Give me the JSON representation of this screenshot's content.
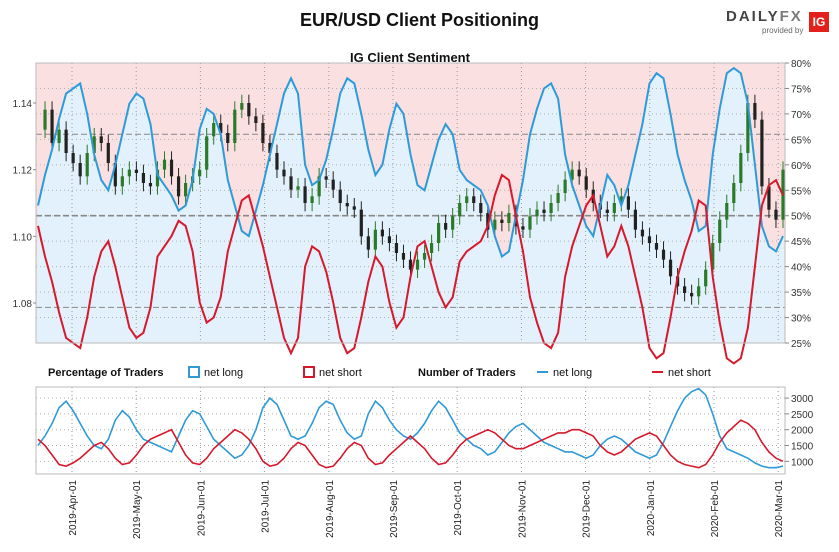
{
  "header": {
    "title": "EUR/USD Client Positioning",
    "logo_brand_a": "DAILY",
    "logo_brand_b": "FX",
    "logo_sub": "provided by",
    "logo_ig": "IG"
  },
  "colors": {
    "long_fill": "#e2f1fb",
    "short_fill": "#fbe0e2",
    "net_long": "#2f9ad8",
    "net_short": "#d7192d",
    "candle_up": "#2a7a2a",
    "candle_down": "#222222"
  },
  "chart_data": [
    {
      "type": "line",
      "title": "IG Client Sentiment",
      "y_left_ticks": [
        "1.14",
        "1.12",
        "1.10",
        "1.08"
      ],
      "y_left_range": [
        1.068,
        1.152
      ],
      "y_right_ticks": [
        "80%",
        "75%",
        "70%",
        "65%",
        "60%",
        "55%",
        "50%",
        "45%",
        "40%",
        "35%",
        "30%",
        "25%"
      ],
      "y_right_range": [
        25,
        80
      ],
      "reference_lines": [
        {
          "pct": 50
        },
        {
          "pct": 66
        },
        {
          "pct": 32
        }
      ],
      "series": [
        {
          "role": "net-long-percent",
          "color": "net_long",
          "values": [
            52,
            58,
            63,
            69,
            74,
            75,
            76,
            70,
            62,
            57,
            55,
            60,
            66,
            72,
            74,
            73,
            68,
            58,
            56,
            54,
            51,
            52,
            57,
            67,
            71,
            70,
            66,
            57,
            52,
            47,
            46,
            51,
            56,
            62,
            68,
            74,
            77,
            74,
            60,
            56,
            57,
            61,
            67,
            74,
            77,
            76,
            70,
            63,
            58,
            60,
            67,
            72,
            70,
            62,
            56,
            55,
            60,
            65,
            68,
            66,
            59,
            57,
            56,
            55,
            52,
            46,
            42,
            43,
            50,
            57,
            66,
            71,
            75,
            76,
            73,
            62,
            56,
            52,
            48,
            46,
            52,
            58,
            56,
            52,
            56,
            62,
            68,
            76,
            78,
            77,
            70,
            62,
            57,
            53,
            47,
            48,
            62,
            71,
            78,
            79,
            78,
            72,
            60,
            48,
            44,
            43,
            46
          ]
        },
        {
          "role": "net-short-percent",
          "color": "net_short",
          "values": [
            48,
            42,
            37,
            31,
            26,
            25,
            24,
            30,
            38,
            43,
            45,
            40,
            34,
            28,
            26,
            27,
            32,
            42,
            44,
            46,
            49,
            48,
            43,
            33,
            29,
            30,
            34,
            43,
            48,
            53,
            54,
            49,
            44,
            38,
            32,
            26,
            23,
            26,
            40,
            44,
            43,
            39,
            33,
            26,
            23,
            24,
            30,
            37,
            42,
            40,
            33,
            28,
            30,
            38,
            44,
            45,
            40,
            35,
            32,
            34,
            41,
            43,
            44,
            45,
            48,
            54,
            58,
            57,
            50,
            43,
            34,
            29,
            25,
            24,
            27,
            38,
            44,
            48,
            52,
            54,
            48,
            42,
            44,
            48,
            44,
            38,
            32,
            24,
            22,
            23,
            30,
            38,
            43,
            47,
            53,
            52,
            38,
            29,
            22,
            21,
            22,
            28,
            40,
            52,
            56,
            57,
            54
          ]
        },
        {
          "role": "price",
          "type": "candlestick",
          "values": [
            1.132,
            1.138,
            1.128,
            1.132,
            1.125,
            1.122,
            1.118,
            1.125,
            1.13,
            1.128,
            1.122,
            1.115,
            1.118,
            1.12,
            1.119,
            1.116,
            1.115,
            1.12,
            1.123,
            1.118,
            1.112,
            1.116,
            1.118,
            1.12,
            1.13,
            1.134,
            1.131,
            1.128,
            1.138,
            1.14,
            1.136,
            1.134,
            1.128,
            1.125,
            1.12,
            1.118,
            1.114,
            1.115,
            1.11,
            1.112,
            1.118,
            1.117,
            1.114,
            1.11,
            1.109,
            1.108,
            1.1,
            1.096,
            1.102,
            1.1,
            1.098,
            1.095,
            1.093,
            1.09,
            1.093,
            1.095,
            1.098,
            1.104,
            1.102,
            1.106,
            1.11,
            1.112,
            1.11,
            1.107,
            1.102,
            1.105,
            1.104,
            1.107,
            1.103,
            1.102,
            1.106,
            1.108,
            1.107,
            1.11,
            1.113,
            1.117,
            1.12,
            1.118,
            1.114,
            1.11,
            1.108,
            1.107,
            1.11,
            1.112,
            1.108,
            1.102,
            1.1,
            1.098,
            1.096,
            1.093,
            1.088,
            1.085,
            1.083,
            1.082,
            1.085,
            1.09,
            1.098,
            1.105,
            1.11,
            1.116,
            1.125,
            1.14,
            1.135,
            1.115,
            1.108,
            1.105,
            1.12
          ]
        }
      ]
    },
    {
      "type": "line",
      "title_left": "Percentage of Traders",
      "title_right": "Number of Traders",
      "legend": {
        "pct_long": "net long",
        "pct_short": "net short",
        "num_long": "net long",
        "num_short": "net short"
      },
      "y_ticks": [
        "3000",
        "2500",
        "2000",
        "1500",
        "1000"
      ],
      "y_range": [
        600,
        3350
      ],
      "series": [
        {
          "role": "net-long-traders",
          "color": "net_long",
          "values": [
            1500,
            1800,
            2200,
            2700,
            2900,
            2600,
            2200,
            1800,
            1500,
            1400,
            1700,
            2300,
            2600,
            2400,
            2000,
            1700,
            1600,
            1500,
            1400,
            1300,
            1800,
            2300,
            2600,
            2500,
            2100,
            1700,
            1500,
            1300,
            1100,
            1200,
            1500,
            2000,
            2700,
            3000,
            2800,
            2300,
            1800,
            1700,
            1800,
            2200,
            2700,
            2900,
            2800,
            2300,
            1900,
            1700,
            1800,
            2500,
            2900,
            2700,
            2300,
            2000,
            1800,
            1700,
            1900,
            2200,
            2600,
            2900,
            2700,
            2300,
            1900,
            1700,
            1500,
            1400,
            1200,
            1300,
            1600,
            1900,
            2100,
            2200,
            2000,
            1800,
            1600,
            1500,
            1400,
            1300,
            1300,
            1200,
            1100,
            1200,
            1500,
            1700,
            1800,
            1700,
            1500,
            1300,
            1200,
            1100,
            1200,
            1600,
            2100,
            2600,
            3000,
            3200,
            3300,
            3100,
            2500,
            1800,
            1400,
            1300,
            1200,
            1100,
            950,
            850,
            800,
            800,
            850
          ]
        },
        {
          "role": "net-short-traders",
          "color": "net_short",
          "values": [
            1700,
            1500,
            1200,
            900,
            850,
            950,
            1100,
            1300,
            1500,
            1600,
            1400,
            1100,
            900,
            950,
            1200,
            1500,
            1700,
            1800,
            1900,
            2000,
            1600,
            1200,
            950,
            900,
            1100,
            1400,
            1600,
            1800,
            2000,
            1900,
            1700,
            1400,
            1000,
            850,
            900,
            1100,
            1400,
            1600,
            1500,
            1200,
            900,
            800,
            850,
            1100,
            1400,
            1600,
            1500,
            1100,
            900,
            950,
            1200,
            1400,
            1600,
            1800,
            1600,
            1400,
            1100,
            900,
            950,
            1200,
            1500,
            1700,
            1800,
            1900,
            2000,
            1900,
            1700,
            1500,
            1400,
            1400,
            1500,
            1600,
            1700,
            1800,
            1900,
            1900,
            2000,
            2000,
            1900,
            1800,
            1500,
            1300,
            1200,
            1300,
            1500,
            1700,
            1800,
            1900,
            1800,
            1500,
            1200,
            1000,
            900,
            850,
            800,
            900,
            1200,
            1600,
            1900,
            2100,
            2300,
            2200,
            2000,
            1600,
            1300,
            1100,
            1000
          ]
        }
      ]
    },
    {
      "type": "axis",
      "x_labels": [
        "2019-Apr-01",
        "2019-May-01",
        "2019-Jun-01",
        "2019-Jul-01",
        "2019-Aug-01",
        "2019-Sep-01",
        "2019-Oct-01",
        "2019-Nov-01",
        "2019-Dec-01",
        "2020-Jan-01",
        "2020-Feb-01",
        "2020-Mar-01"
      ]
    }
  ]
}
